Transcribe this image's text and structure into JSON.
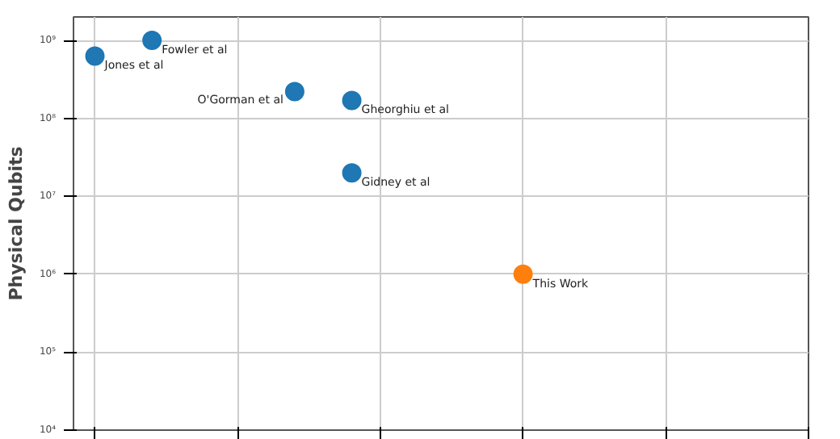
{
  "chart_data": {
    "type": "scatter",
    "ylabel": "Physical Qubits",
    "log": "y",
    "grid": true,
    "marker": "circle",
    "tick_labels": "y",
    "categories": [
      null,
      null,
      null,
      null,
      null,
      null,
      null,
      null,
      null,
      null,
      null,
      null,
      null,
      null,
      null,
      null,
      null,
      null,
      null,
      null,
      null,
      null,
      null,
      null,
      null,
      null
    ],
    "ylim": [
      10000,
      2000000000
    ],
    "yticks": [
      {
        "value": 10000,
        "label": "10⁴"
      },
      {
        "value": 100000,
        "label": "10⁵"
      },
      {
        "value": 1000000,
        "label": "10⁶"
      },
      {
        "value": 10000000,
        "label": "10⁷"
      },
      {
        "value": 100000000,
        "label": "10⁸"
      },
      {
        "value": 1000000000,
        "label": "10⁹"
      }
    ],
    "series": [
      {
        "name": "Jones et al",
        "color": "#1f77b4",
        "values": [
          630000000,
          null,
          null,
          null,
          null,
          null,
          null,
          null,
          null,
          null,
          null,
          null,
          null,
          null,
          null,
          null,
          null,
          null,
          null,
          null,
          null,
          null,
          null,
          null,
          null,
          null
        ]
      },
      {
        "name": "Fowler et al",
        "color": "#1f77b4",
        "values": [
          null,
          null,
          1000000000,
          null,
          null,
          null,
          null,
          null,
          null,
          null,
          null,
          null,
          null,
          null,
          null,
          null,
          null,
          null,
          null,
          null,
          null,
          null,
          null,
          null,
          null,
          null
        ]
      },
      {
        "name": "O'Gorman et al",
        "color": "#1f77b4",
        "values": [
          null,
          null,
          null,
          null,
          null,
          null,
          null,
          220000000,
          null,
          null,
          null,
          null,
          null,
          null,
          null,
          null,
          null,
          null,
          null,
          null,
          null,
          null,
          null,
          null,
          null,
          null
        ]
      },
      {
        "name": "Gheorghiu et al",
        "color": "#1f77b4",
        "values": [
          null,
          null,
          null,
          null,
          null,
          null,
          null,
          null,
          null,
          170000000,
          null,
          null,
          null,
          null,
          null,
          null,
          null,
          null,
          null,
          null,
          null,
          null,
          null,
          null,
          null,
          null
        ]
      },
      {
        "name": "Gidney et al",
        "color": "#1f77b4",
        "values": [
          null,
          null,
          null,
          null,
          null,
          null,
          null,
          null,
          null,
          20000000,
          null,
          null,
          null,
          null,
          null,
          null,
          null,
          null,
          null,
          null,
          null,
          null,
          null,
          null,
          null,
          null
        ]
      },
      {
        "name": "This Work",
        "color": "#ff7f0e",
        "values": [
          null,
          null,
          null,
          null,
          null,
          null,
          null,
          null,
          null,
          null,
          null,
          null,
          null,
          null,
          null,
          1000000,
          null,
          null,
          null,
          null,
          null,
          null,
          null,
          null,
          null,
          null
        ]
      }
    ]
  }
}
